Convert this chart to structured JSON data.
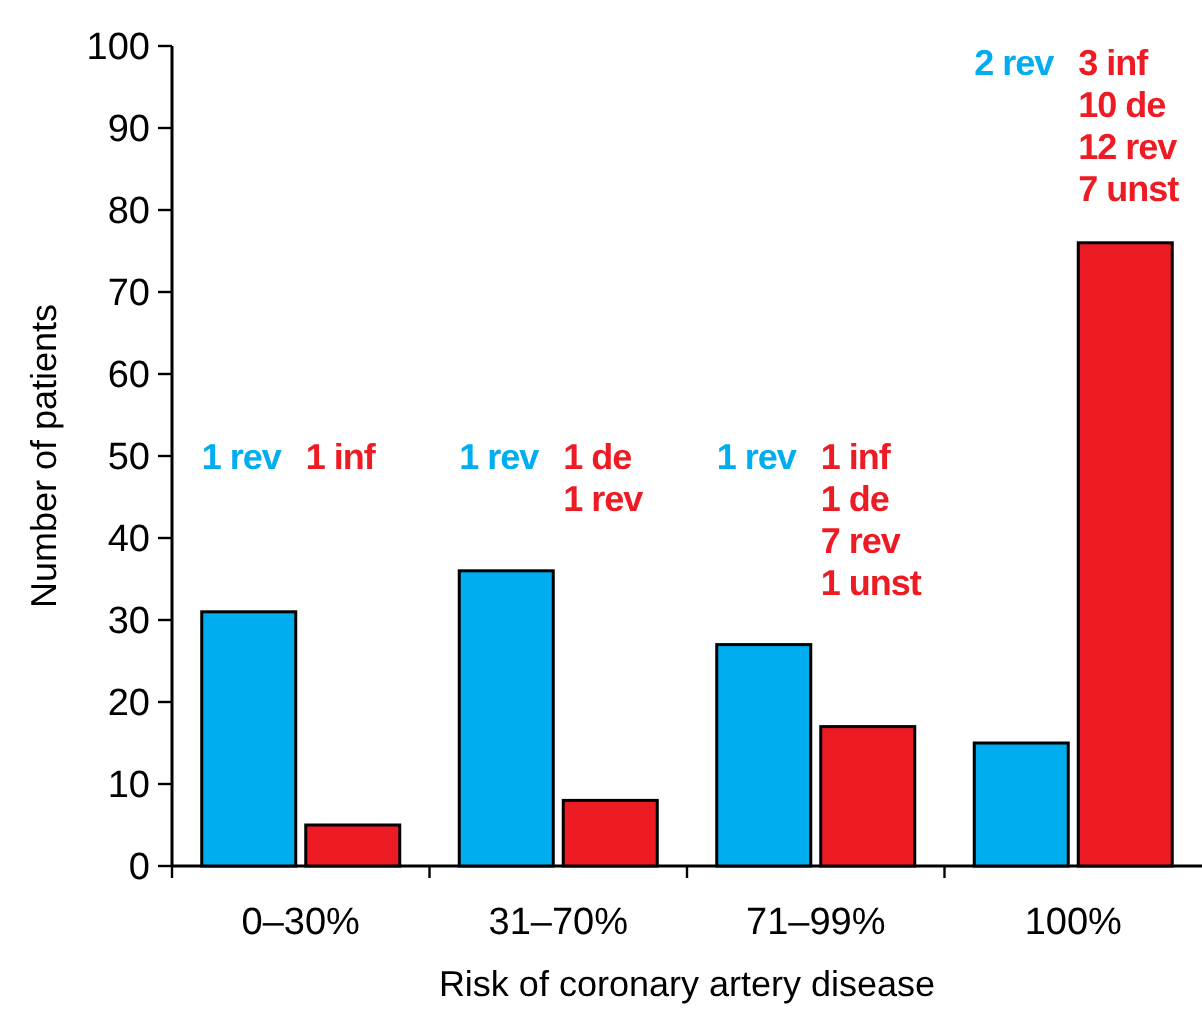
{
  "chart_data": {
    "type": "bar",
    "xlabel": "Risk of coronary artery disease",
    "ylabel": "Number of patients",
    "categories": [
      "0–30%",
      "31–70%",
      "71–99%",
      "100%"
    ],
    "series": [
      {
        "color": "#00aeef",
        "values": [
          31,
          36,
          27,
          15
        ]
      },
      {
        "color": "#ed1c24",
        "values": [
          5,
          8,
          17,
          76
        ]
      }
    ],
    "annotations": [
      "1 rev",
      "1 inf",
      "1 rev",
      "1 de\n1 rev",
      "1 rev",
      "1 inf\n1 de\n7 rev\n1 unst",
      "2 rev",
      "3 inf\n10 de\n12 rev\n7 unst"
    ],
    "ylim": [
      0,
      100
    ],
    "yticks": [
      0,
      10,
      20,
      30,
      40,
      50,
      60,
      70,
      80,
      90,
      100
    ]
  }
}
